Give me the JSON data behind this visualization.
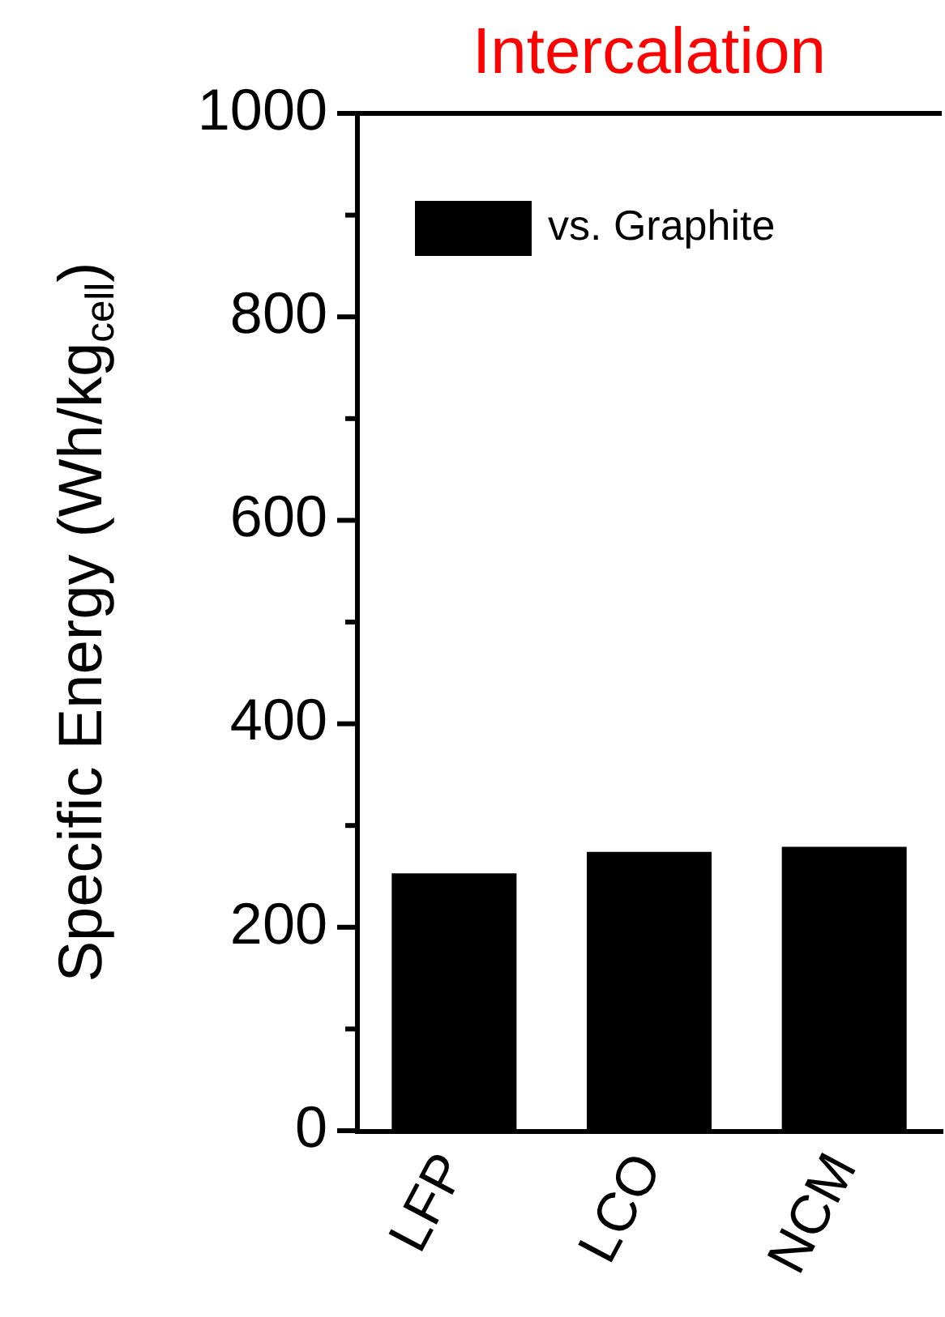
{
  "chart_data": {
    "type": "bar",
    "title": "Intercalation",
    "ylabel": "Specific Energy (Wh/kg$_{cell}$)",
    "categories": [
      "LFP",
      "LCO",
      "NCM"
    ],
    "series": [
      {
        "name": "vs. Graphite",
        "color": "#000000",
        "values": [
          253,
          274,
          279
        ]
      }
    ],
    "ylim": [
      0,
      1000
    ],
    "yticks": [
      0,
      {
        "value": 100,
        "label": null
      },
      200,
      {
        "value": 300,
        "label": null
      },
      400,
      {
        "value": 500,
        "label": null
      },
      600,
      {
        "value": 700,
        "label": null
      },
      800,
      {
        "value": 900,
        "label": null
      },
      1000
    ],
    "legend": "top left",
    "grid": false
  }
}
